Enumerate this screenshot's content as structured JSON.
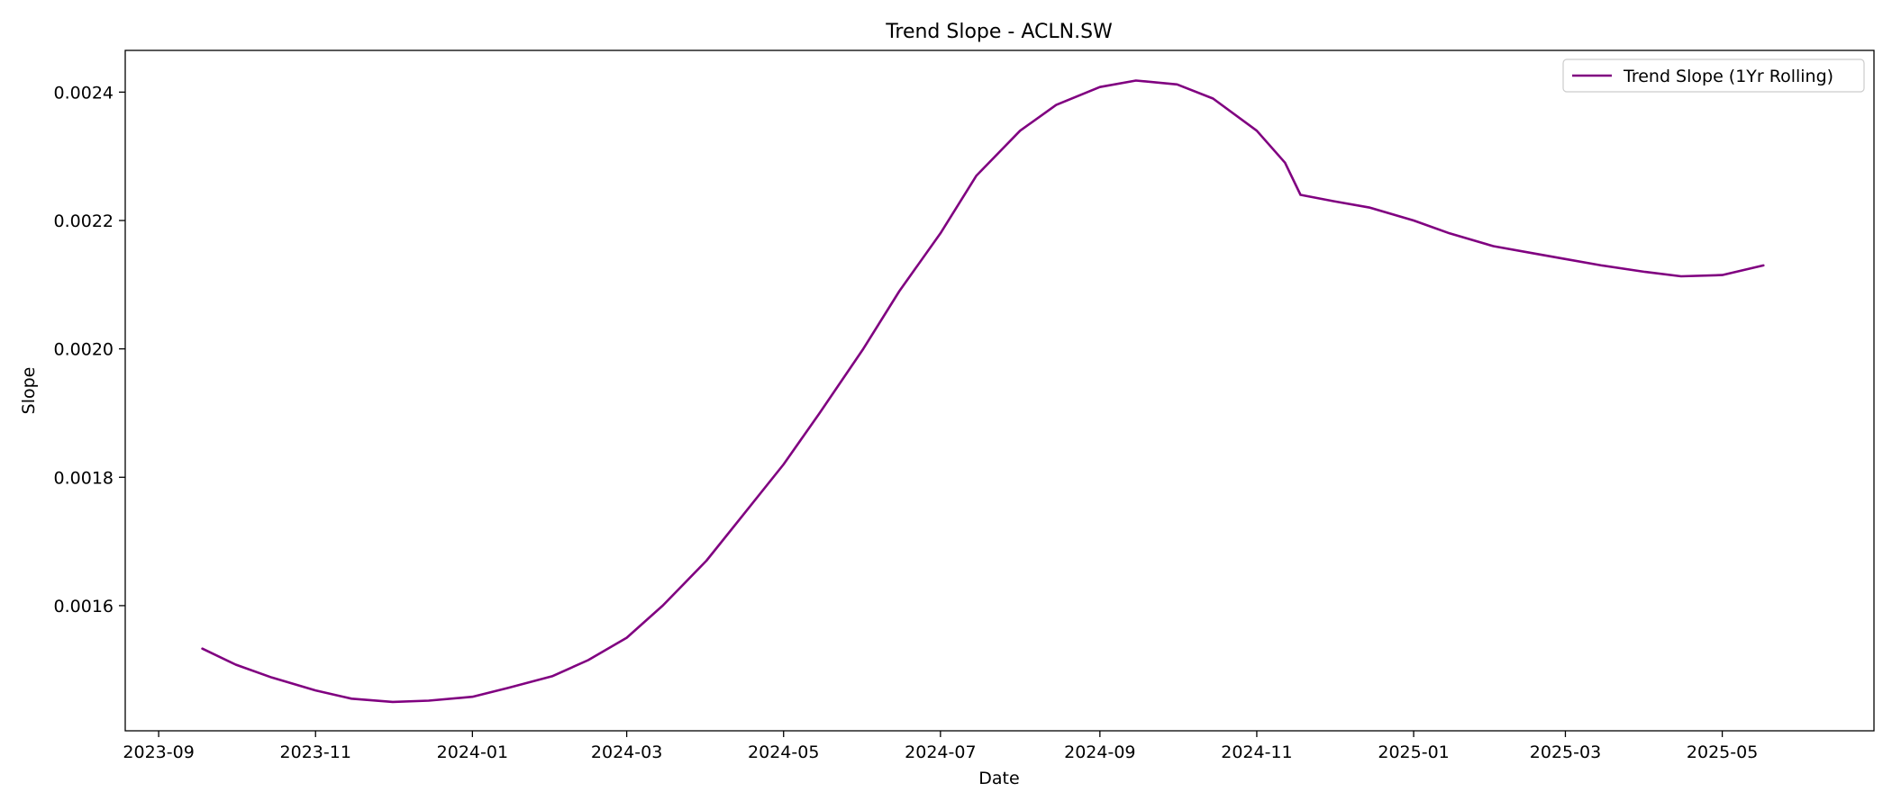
{
  "chart_data": {
    "type": "line",
    "title": "Trend Slope - ACLN.SW",
    "xlabel": "Date",
    "ylabel": "Slope",
    "legend": {
      "location": "top-right",
      "entries": [
        "Trend Slope (1Yr Rolling)"
      ]
    },
    "grid": false,
    "xlim": [
      "2023-08-19",
      "2025-06-29"
    ],
    "ylim": [
      0.001405,
      0.002465
    ],
    "x_ticks": [
      "2023-09-01",
      "2023-11-01",
      "2024-01-01",
      "2024-03-01",
      "2024-05-01",
      "2024-07-01",
      "2024-09-01",
      "2024-11-01",
      "2025-01-01",
      "2025-03-01",
      "2025-05-01"
    ],
    "x_tick_labels": [
      "2023-09",
      "2023-11",
      "2024-01",
      "2024-03",
      "2024-05",
      "2024-07",
      "2024-09",
      "2024-11",
      "2025-01",
      "2025-03",
      "2025-05"
    ],
    "y_ticks": [
      0.0016,
      0.0018,
      0.002,
      0.0022,
      0.0024
    ],
    "y_tick_labels": [
      "0.0016",
      "0.0018",
      "0.0020",
      "0.0022",
      "0.0024"
    ],
    "series": [
      {
        "name": "Trend Slope (1Yr Rolling)",
        "color": "#800080",
        "x": [
          "2023-09-18",
          "2023-10-01",
          "2023-10-15",
          "2023-11-01",
          "2023-11-15",
          "2023-12-01",
          "2023-12-15",
          "2024-01-01",
          "2024-01-15",
          "2024-02-01",
          "2024-02-15",
          "2024-03-01",
          "2024-03-15",
          "2024-04-01",
          "2024-04-15",
          "2024-05-01",
          "2024-05-15",
          "2024-06-01",
          "2024-06-15",
          "2024-07-01",
          "2024-07-15",
          "2024-08-01",
          "2024-08-15",
          "2024-09-01",
          "2024-09-15",
          "2024-10-01",
          "2024-10-15",
          "2024-11-01",
          "2024-11-12",
          "2024-11-18",
          "2024-12-01",
          "2024-12-15",
          "2025-01-01",
          "2025-01-15",
          "2025-02-01",
          "2025-02-15",
          "2025-03-01",
          "2025-03-15",
          "2025-04-01",
          "2025-04-15",
          "2025-05-01",
          "2025-05-17"
        ],
        "y": [
          0.001533,
          0.001508,
          0.001488,
          0.001468,
          0.001455,
          0.00145,
          0.001452,
          0.001458,
          0.001472,
          0.00149,
          0.001515,
          0.00155,
          0.0016,
          0.00167,
          0.00174,
          0.00182,
          0.0019,
          0.002,
          0.00209,
          0.00218,
          0.00227,
          0.00234,
          0.00238,
          0.002408,
          0.002418,
          0.002412,
          0.00239,
          0.00234,
          0.00229,
          0.00224,
          0.00223,
          0.00222,
          0.0022,
          0.00218,
          0.00216,
          0.00215,
          0.00214,
          0.00213,
          0.00212,
          0.002113,
          0.002115,
          0.00213
        ]
      }
    ]
  }
}
